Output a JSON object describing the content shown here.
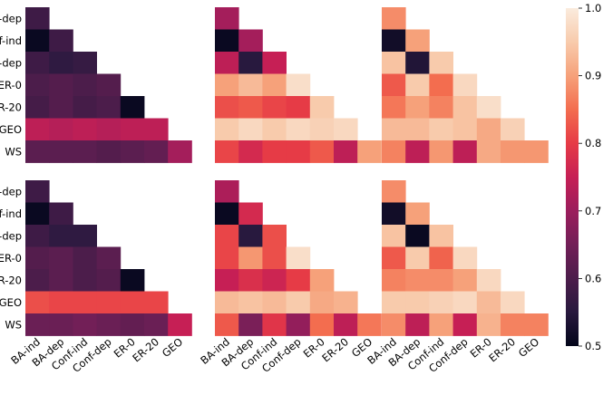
{
  "chart_data": {
    "type": "heatmap",
    "layout": "2 rows x 3 columns of lower-triangular heatmaps sharing one colorbar",
    "row_labels": [
      "BA-dep",
      "Conf-ind",
      "Conf-dep",
      "ER-0",
      "ER-20",
      "GEO",
      "WS"
    ],
    "col_labels": [
      "BA-ind",
      "BA-dep",
      "Conf-ind",
      "Conf-dep",
      "ER-0",
      "ER-20",
      "GEO"
    ],
    "colorbar": {
      "range": [
        0.5,
        1.0
      ],
      "ticks": [
        "0.5",
        "0.6",
        "0.7",
        "0.8",
        "0.9",
        "1.0"
      ],
      "colormap": "rocket (black → purple → red → orange → cream)"
    },
    "panels": [
      {
        "values": [
          [
            0.58
          ],
          [
            0.51,
            0.58
          ],
          [
            0.58,
            0.56,
            0.57
          ],
          [
            0.6,
            0.61,
            0.6,
            0.61
          ],
          [
            0.59,
            0.61,
            0.59,
            0.6,
            0.51
          ],
          [
            0.74,
            0.73,
            0.74,
            0.73,
            0.74,
            0.74
          ],
          [
            0.62,
            0.62,
            0.62,
            0.61,
            0.62,
            0.63,
            0.71
          ]
        ]
      },
      {
        "values": [
          [
            0.71
          ],
          [
            0.51,
            0.71
          ],
          [
            0.74,
            0.55,
            0.75
          ],
          [
            0.9,
            0.93,
            0.9,
            0.98
          ],
          [
            0.82,
            0.83,
            0.81,
            0.8,
            0.95
          ],
          [
            0.95,
            0.97,
            0.95,
            0.97,
            0.96,
            0.97
          ],
          [
            0.81,
            0.77,
            0.8,
            0.8,
            0.83,
            0.74,
            0.9
          ]
        ]
      },
      {
        "values": [
          [
            0.88
          ],
          [
            0.52,
            0.9
          ],
          [
            0.94,
            0.54,
            0.95
          ],
          [
            0.83,
            0.95,
            0.85,
            0.97
          ],
          [
            0.86,
            0.9,
            0.87,
            0.94,
            0.98
          ],
          [
            0.93,
            0.93,
            0.95,
            0.94,
            0.91,
            0.96
          ],
          [
            0.87,
            0.74,
            0.89,
            0.74,
            0.91,
            0.89,
            0.89
          ]
        ]
      },
      {
        "values": [
          [
            0.58
          ],
          [
            0.51,
            0.58
          ],
          [
            0.58,
            0.56,
            0.56
          ],
          [
            0.61,
            0.62,
            0.6,
            0.62
          ],
          [
            0.6,
            0.62,
            0.6,
            0.61,
            0.51
          ],
          [
            0.82,
            0.81,
            0.81,
            0.81,
            0.81,
            0.81
          ],
          [
            0.64,
            0.64,
            0.65,
            0.64,
            0.63,
            0.64,
            0.75
          ]
        ]
      },
      {
        "values": [
          [
            0.72
          ],
          [
            0.51,
            0.77
          ],
          [
            0.81,
            0.55,
            0.82
          ],
          [
            0.81,
            0.89,
            0.82,
            0.98
          ],
          [
            0.75,
            0.78,
            0.76,
            0.8,
            0.9
          ],
          [
            0.93,
            0.94,
            0.93,
            0.95,
            0.91,
            0.92
          ],
          [
            0.83,
            0.66,
            0.79,
            0.69,
            0.85,
            0.74,
            0.86
          ]
        ]
      },
      {
        "values": [
          [
            0.88
          ],
          [
            0.52,
            0.9
          ],
          [
            0.94,
            0.51,
            0.94
          ],
          [
            0.83,
            0.95,
            0.84,
            0.97
          ],
          [
            0.87,
            0.88,
            0.88,
            0.9,
            0.97
          ],
          [
            0.95,
            0.95,
            0.96,
            0.97,
            0.93,
            0.97
          ],
          [
            0.88,
            0.74,
            0.9,
            0.75,
            0.92,
            0.87,
            0.87
          ]
        ]
      }
    ]
  }
}
